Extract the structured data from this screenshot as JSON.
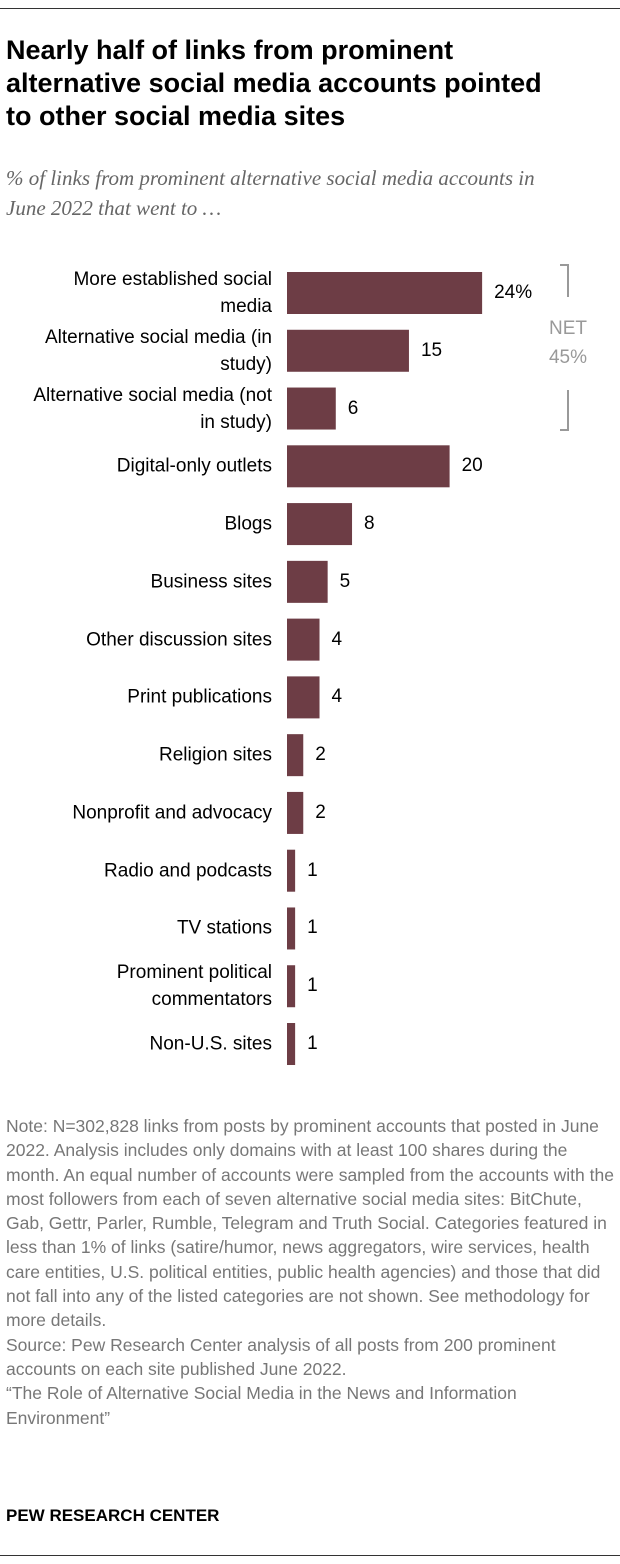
{
  "chart_data": {
    "type": "bar",
    "orientation": "horizontal",
    "title": "Nearly half of links from prominent alternative social media accounts pointed to other social media sites",
    "subtitle": "% of links from prominent alternative social media accounts in June 2022 that went to …",
    "categories": [
      "More established social media",
      "Alternative social media (in study)",
      "Alternative social media (not in study)",
      "Digital-only outlets",
      "Blogs",
      "Business sites",
      "Other discussion sites",
      "Print publications",
      "Religion sites",
      "Nonprofit and advocacy",
      "Radio and podcasts",
      "TV stations",
      "Prominent political commentators",
      "Non-U.S. sites"
    ],
    "values": [
      24,
      15,
      6,
      20,
      8,
      5,
      4,
      4,
      2,
      2,
      1,
      1,
      1,
      1
    ],
    "value_labels": [
      "24%",
      "15",
      "6",
      "20",
      "8",
      "5",
      "4",
      "4",
      "2",
      "2",
      "1",
      "1",
      "1",
      "1"
    ],
    "color": "#6d3d45",
    "net": {
      "label": "NET",
      "value": 45,
      "value_label": "45%"
    },
    "note": "Note: N=302,828 links from posts by prominent accounts that posted in June 2022. Analysis includes only domains with at least 100 shares during the month. An equal number of accounts were sampled from the accounts with the most followers from each of seven alternative social media sites: BitChute, Gab, Gettr, Parler, Rumble, Telegram and Truth Social. Categories featured in less than 1% of links (satire/humor, news aggregators, wire services, health care entities, U.S. political entities, public health agencies) and those that did not fall into any of the listed categories are not shown. See methodology for more details.",
    "source": "Source: Pew Research Center analysis of all posts from 200 prominent accounts on each site published June 2022.",
    "report": "“The Role of Alternative Social Media in the News and Information Environment”",
    "footer": "PEW RESEARCH CENTER"
  }
}
